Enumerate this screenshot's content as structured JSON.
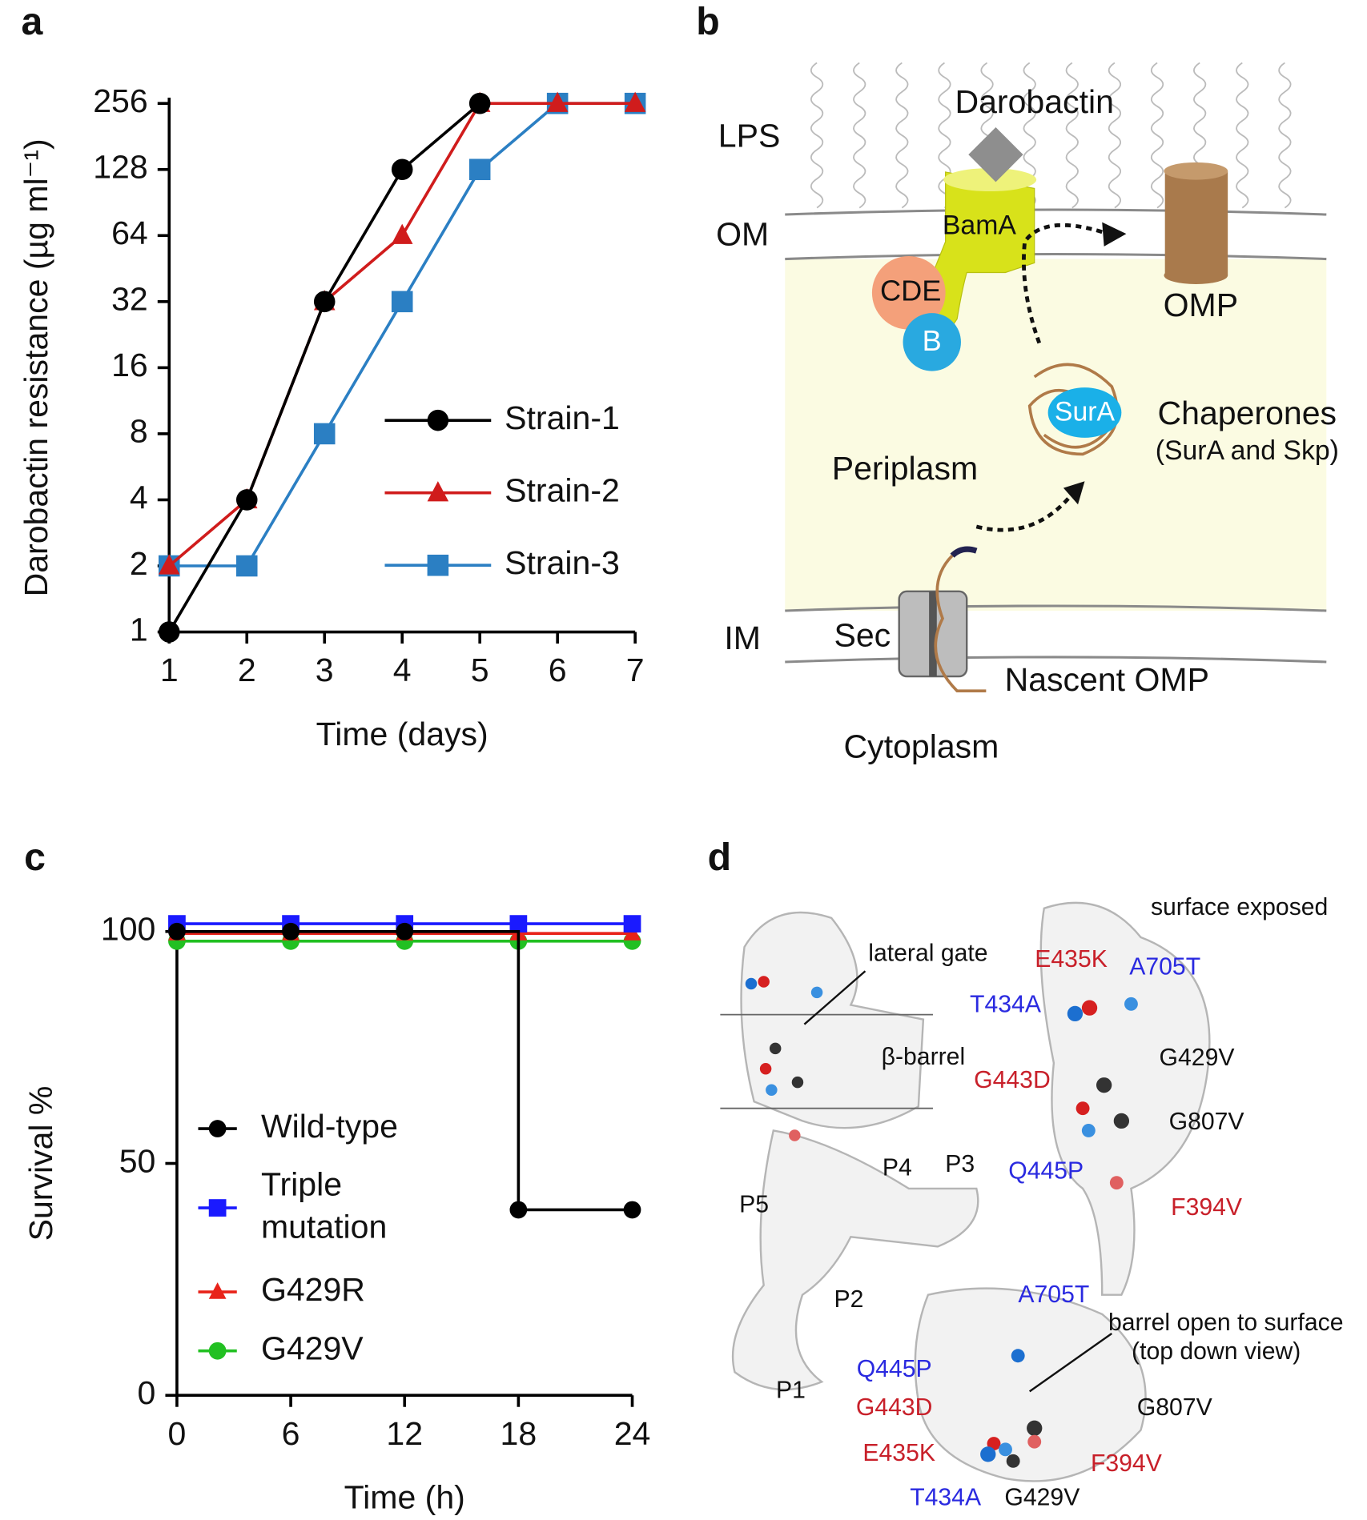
{
  "panel_labels": [
    "a",
    "b",
    "c",
    "d"
  ],
  "chart_data": [
    {
      "type": "line",
      "xlabel": "Time (days)",
      "ylabel": "Darobactin resistance (µg ml⁻¹)",
      "x": [
        1,
        2,
        3,
        4,
        5,
        6,
        7
      ],
      "xlim": [
        1,
        7
      ],
      "xticks": [
        1,
        2,
        3,
        4,
        5,
        6,
        7
      ],
      "yscale": "log2",
      "ylim": [
        1,
        256
      ],
      "yticks": [
        1,
        2,
        4,
        8,
        16,
        32,
        64,
        128,
        256
      ],
      "legend": "right",
      "series": [
        {
          "name": "Strain-1",
          "color": "#000000",
          "marker": "circle",
          "values": [
            1,
            4,
            32,
            128,
            256,
            null,
            null
          ]
        },
        {
          "name": "Strain-2",
          "color": "#d01c1c",
          "marker": "triangle",
          "values": [
            2,
            4,
            32,
            64,
            256,
            256,
            256
          ]
        },
        {
          "name": "Strain-3",
          "color": "#2b7fc3",
          "marker": "square",
          "values": [
            2,
            2,
            8,
            32,
            128,
            256,
            256
          ]
        }
      ]
    },
    {
      "type": "line",
      "step": "post",
      "xlabel": "Time (h)",
      "ylabel": "Survival %",
      "x": [
        0,
        6,
        12,
        18,
        24
      ],
      "xlim": [
        0,
        24
      ],
      "xticks": [
        0,
        6,
        12,
        18,
        24
      ],
      "ylim": [
        0,
        100
      ],
      "yticks": [
        0,
        50,
        100
      ],
      "legend": "left",
      "series": [
        {
          "name": "Wild-type",
          "color": "#000000",
          "marker": "circle",
          "values": [
            100,
            100,
            100,
            40,
            40
          ]
        },
        {
          "name": "Triple mutation",
          "color": "#1a1aff",
          "marker": "square",
          "values": [
            100,
            100,
            100,
            100,
            100
          ]
        },
        {
          "name": "G429R",
          "color": "#e8231a",
          "marker": "triangle",
          "values": [
            100,
            100,
            100,
            100,
            100
          ]
        },
        {
          "name": "G429V",
          "color": "#22c022",
          "marker": "circle",
          "values": [
            100,
            100,
            100,
            100,
            100
          ]
        }
      ]
    }
  ],
  "diagram_b": {
    "lps": "LPS",
    "om": "OM",
    "im": "IM",
    "darobactin": "Darobactin",
    "bama": "BamA",
    "cde": "CDE",
    "b": "B",
    "omp": "OMP",
    "sura": "SurA",
    "chaperones": "Chaperones",
    "chaperones_note": "(SurA and Skp)",
    "periplasm": "Periplasm",
    "sec": "Sec",
    "nascent": "Nascent OMP",
    "cytoplasm": "Cytoplasm"
  },
  "structure_d": {
    "side": {
      "lateral_gate": "lateral gate",
      "barrel": "β-barrel",
      "p5": "P5",
      "p4": "P4",
      "p3": "P3",
      "p2": "P2",
      "p1": "P1"
    },
    "mutations": {
      "surface": "surface exposed",
      "e435k": "E435K",
      "a705t": "A705T",
      "t434a": "T434A",
      "g429v": "G429V",
      "g443d": "G443D",
      "g807v": "G807V",
      "q445p": "Q445P",
      "f394v": "F394V"
    },
    "top": {
      "a705t": "A705T",
      "open": "barrel open to surface",
      "view": "(top down view)",
      "q445p": "Q445P",
      "g443d": "G443D",
      "g807v": "G807V",
      "e435k": "E435K",
      "f394v": "F394V",
      "t434a": "T434A",
      "g429v": "G429V"
    }
  }
}
